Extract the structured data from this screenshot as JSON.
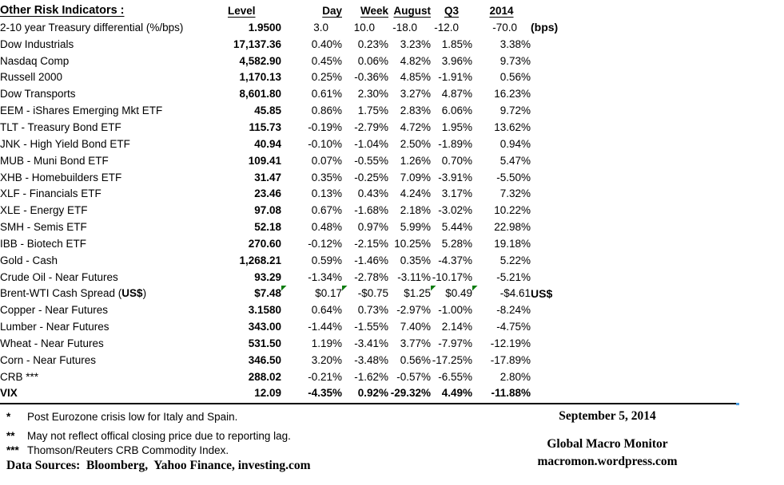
{
  "colors": {
    "flag_green": "#0e7c10",
    "rule_black": "#000000",
    "rule_tick_blue": "#4a9de0",
    "text": "#000000",
    "background": "#ffffff"
  },
  "chart_data": {
    "type": "table",
    "title": "Other Risk Indicators :",
    "columns": [
      "Level",
      "Day",
      "Week",
      "August",
      "Q3",
      "2014"
    ],
    "rows": [
      {
        "label": "2-10 year Treasury differential (%/bps)",
        "values": [
          "1.9500",
          "3.0",
          "10.0",
          "-18.0",
          "-12.0",
          "-70.0"
        ],
        "note": "(bps)"
      },
      {
        "label": "Dow Industrials",
        "values": [
          "17,137.36",
          "0.40%",
          "0.23%",
          "3.23%",
          "1.85%",
          "3.38%"
        ]
      },
      {
        "label": "Nasdaq Comp",
        "values": [
          "4,582.90",
          "0.45%",
          "0.06%",
          "4.82%",
          "3.96%",
          "9.73%"
        ]
      },
      {
        "label": "Russell 2000",
        "values": [
          "1,170.13",
          "0.25%",
          "-0.36%",
          "4.85%",
          "-1.91%",
          "0.56%"
        ]
      },
      {
        "label": "Dow Transports",
        "values": [
          "8,601.80",
          "0.61%",
          "2.30%",
          "3.27%",
          "4.87%",
          "16.23%"
        ]
      },
      {
        "label": "EEM - iShares Emerging Mkt ETF",
        "values": [
          "45.85",
          "0.86%",
          "1.75%",
          "2.83%",
          "6.06%",
          "9.72%"
        ]
      },
      {
        "label": "TLT - Treasury Bond ETF",
        "values": [
          "115.73",
          "-0.19%",
          "-2.79%",
          "4.72%",
          "1.95%",
          "13.62%"
        ]
      },
      {
        "label": "JNK - High Yield Bond ETF",
        "values": [
          "40.94",
          "-0.10%",
          "-1.04%",
          "2.50%",
          "-1.89%",
          "0.94%"
        ]
      },
      {
        "label": "MUB - Muni Bond ETF",
        "values": [
          "109.41",
          "0.07%",
          "-0.55%",
          "1.26%",
          "0.70%",
          "5.47%"
        ]
      },
      {
        "label": "XHB - Homebuilders ETF",
        "values": [
          "31.47",
          "0.35%",
          "-0.25%",
          "7.09%",
          "-3.91%",
          "-5.50%"
        ]
      },
      {
        "label": "XLF - Financials ETF",
        "values": [
          "23.46",
          "0.13%",
          "0.43%",
          "4.24%",
          "3.17%",
          "7.32%"
        ]
      },
      {
        "label": "XLE - Energy ETF",
        "values": [
          "97.08",
          "0.67%",
          "-1.68%",
          "2.18%",
          "-3.02%",
          "10.22%"
        ]
      },
      {
        "label": "SMH - Semis ETF",
        "values": [
          "52.18",
          "0.48%",
          "0.97%",
          "5.99%",
          "5.44%",
          "22.98%"
        ]
      },
      {
        "label": "IBB - Biotech ETF",
        "values": [
          "270.60",
          "-0.12%",
          "-2.15%",
          "10.25%",
          "5.28%",
          "19.18%"
        ]
      },
      {
        "label": "Gold - Cash",
        "values": [
          "1,268.21",
          "0.59%",
          "-1.46%",
          "0.35%",
          "-4.37%",
          "5.22%"
        ]
      },
      {
        "label": "Crude Oil - Near Futures",
        "values": [
          "93.29",
          "-1.34%",
          "-2.78%",
          "-3.11%",
          "-10.17%",
          "-5.21%"
        ]
      },
      {
        "label": "Brent-WTI Cash Spread (US$)",
        "label_bold": "US$",
        "values": [
          "$7.48",
          "$0.17",
          "-$0.75",
          "$1.25",
          "$0.49",
          "-$4.61"
        ],
        "note": "US$",
        "flags": [
          "Day",
          "Week",
          "Q3",
          "2014"
        ]
      },
      {
        "label": "Copper - Near Futures",
        "values": [
          "3.1580",
          "0.64%",
          "0.73%",
          "-2.97%",
          "-1.00%",
          "-8.24%"
        ]
      },
      {
        "label": "Lumber - Near Futures",
        "values": [
          "343.00",
          "-1.44%",
          "-1.55%",
          "7.40%",
          "2.14%",
          "-4.75%"
        ]
      },
      {
        "label": "Wheat - Near Futures",
        "values": [
          "531.50",
          "1.19%",
          "-3.41%",
          "3.77%",
          "-7.97%",
          "-12.19%"
        ]
      },
      {
        "label": "Corn - Near Futures",
        "values": [
          "346.50",
          "3.20%",
          "-3.48%",
          "0.56%",
          "-17.25%",
          "-17.89%"
        ]
      },
      {
        "label": "CRB ***",
        "values": [
          "288.02",
          "-0.21%",
          "-1.62%",
          "-0.57%",
          "-6.55%",
          "2.80%"
        ]
      },
      {
        "label": "VIX",
        "values": [
          "12.09",
          "-4.35%",
          "0.92%",
          "-29.32%",
          "4.49%",
          "-11.88%"
        ],
        "bold": true
      }
    ]
  },
  "footnotes": [
    {
      "marker": "*",
      "text": "Post Eurozone crisis low for Italy and Spain."
    },
    {
      "marker": "**",
      "text": "May not reflect offical closing price due to reporting lag."
    },
    {
      "marker": "***",
      "text": "Thomson/Reuters CRB Commodity Index."
    }
  ],
  "data_sources": "Data Sources:  Bloomberg,  Yahoo Finance, investing.com",
  "footer_right": {
    "date": "September 5, 2014",
    "brand": "Global Macro Monitor",
    "url": "macromon.wordpress.com"
  }
}
